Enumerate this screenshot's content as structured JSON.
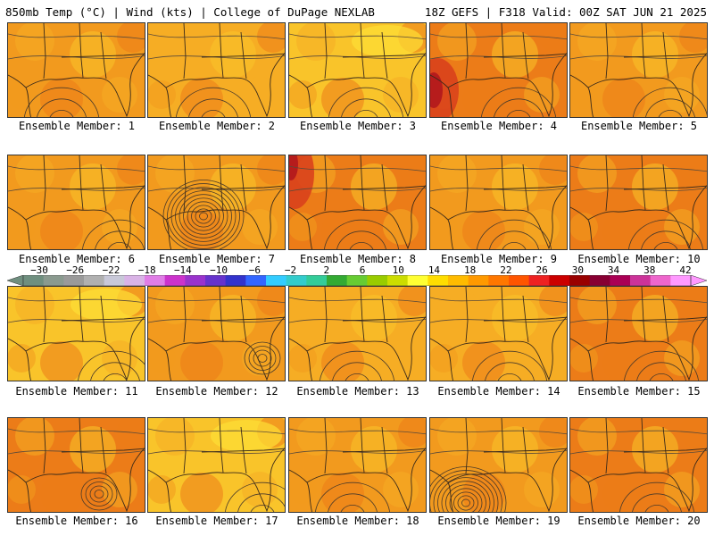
{
  "header": {
    "left": "850mb Temp (°C) | Wind (kts) | College of DuPage NEXLAB",
    "right": "18Z GEFS | F318 Valid: 00Z SAT JUN 21 2025"
  },
  "caption_prefix": "Ensemble Member: ",
  "members": [
    {
      "id": "1",
      "tone": "warm",
      "low": null
    },
    {
      "id": "2",
      "tone": "mid",
      "low": null
    },
    {
      "id": "3",
      "tone": "mild",
      "low": null
    },
    {
      "id": "4",
      "tone": "hot-west",
      "low": null
    },
    {
      "id": "5",
      "tone": "warm",
      "low": null
    },
    {
      "id": "6",
      "tone": "warm",
      "low": null
    },
    {
      "id": "7",
      "tone": "warm",
      "low": "strong"
    },
    {
      "id": "8",
      "tone": "hot-nw",
      "low": null
    },
    {
      "id": "9",
      "tone": "warm",
      "low": null
    },
    {
      "id": "10",
      "tone": "hot",
      "low": null
    },
    {
      "id": "11",
      "tone": "mild",
      "low": null
    },
    {
      "id": "12",
      "tone": "warm",
      "low": "weak"
    },
    {
      "id": "13",
      "tone": "mid",
      "low": null
    },
    {
      "id": "14",
      "tone": "mid",
      "low": null
    },
    {
      "id": "15",
      "tone": "hot",
      "low": null
    },
    {
      "id": "16",
      "tone": "hot",
      "low": "weak"
    },
    {
      "id": "17",
      "tone": "mild",
      "low": null
    },
    {
      "id": "18",
      "tone": "warm",
      "low": null
    },
    {
      "id": "19",
      "tone": "warm",
      "low": "strong"
    },
    {
      "id": "20",
      "tone": "hot",
      "low": null
    }
  ],
  "colorbar": {
    "labels": [
      "−30",
      "−26",
      "−22",
      "−18",
      "−14",
      "−10",
      "−6",
      "−2",
      "2",
      "6",
      "10",
      "14",
      "18",
      "22",
      "26",
      "30",
      "34",
      "38",
      "42"
    ],
    "colors": [
      "#6f8f7f",
      "#8a9a8f",
      "#9a9a9a",
      "#b0b0b0",
      "#c8c8d8",
      "#d9b3e6",
      "#e07de6",
      "#cc33cc",
      "#9933cc",
      "#6633cc",
      "#3333cc",
      "#3366ff",
      "#33ccff",
      "#33cccc",
      "#33cc99",
      "#33aa33",
      "#66cc33",
      "#99cc00",
      "#ccdd00",
      "#ffff33",
      "#ffdd00",
      "#ffbb00",
      "#ff9900",
      "#ff7700",
      "#ff5500",
      "#ee2222",
      "#cc0000",
      "#990000",
      "#880033",
      "#aa0055",
      "#cc3399",
      "#ee66cc",
      "#ff99ff"
    ]
  },
  "palette": {
    "warm": "#f29a1e",
    "mid": "#f6ad24",
    "mild": "#f9c42a",
    "hot": "#ec7c18",
    "deep": "#d9411c",
    "red": "#b61c1c",
    "yellow": "#fde036"
  }
}
